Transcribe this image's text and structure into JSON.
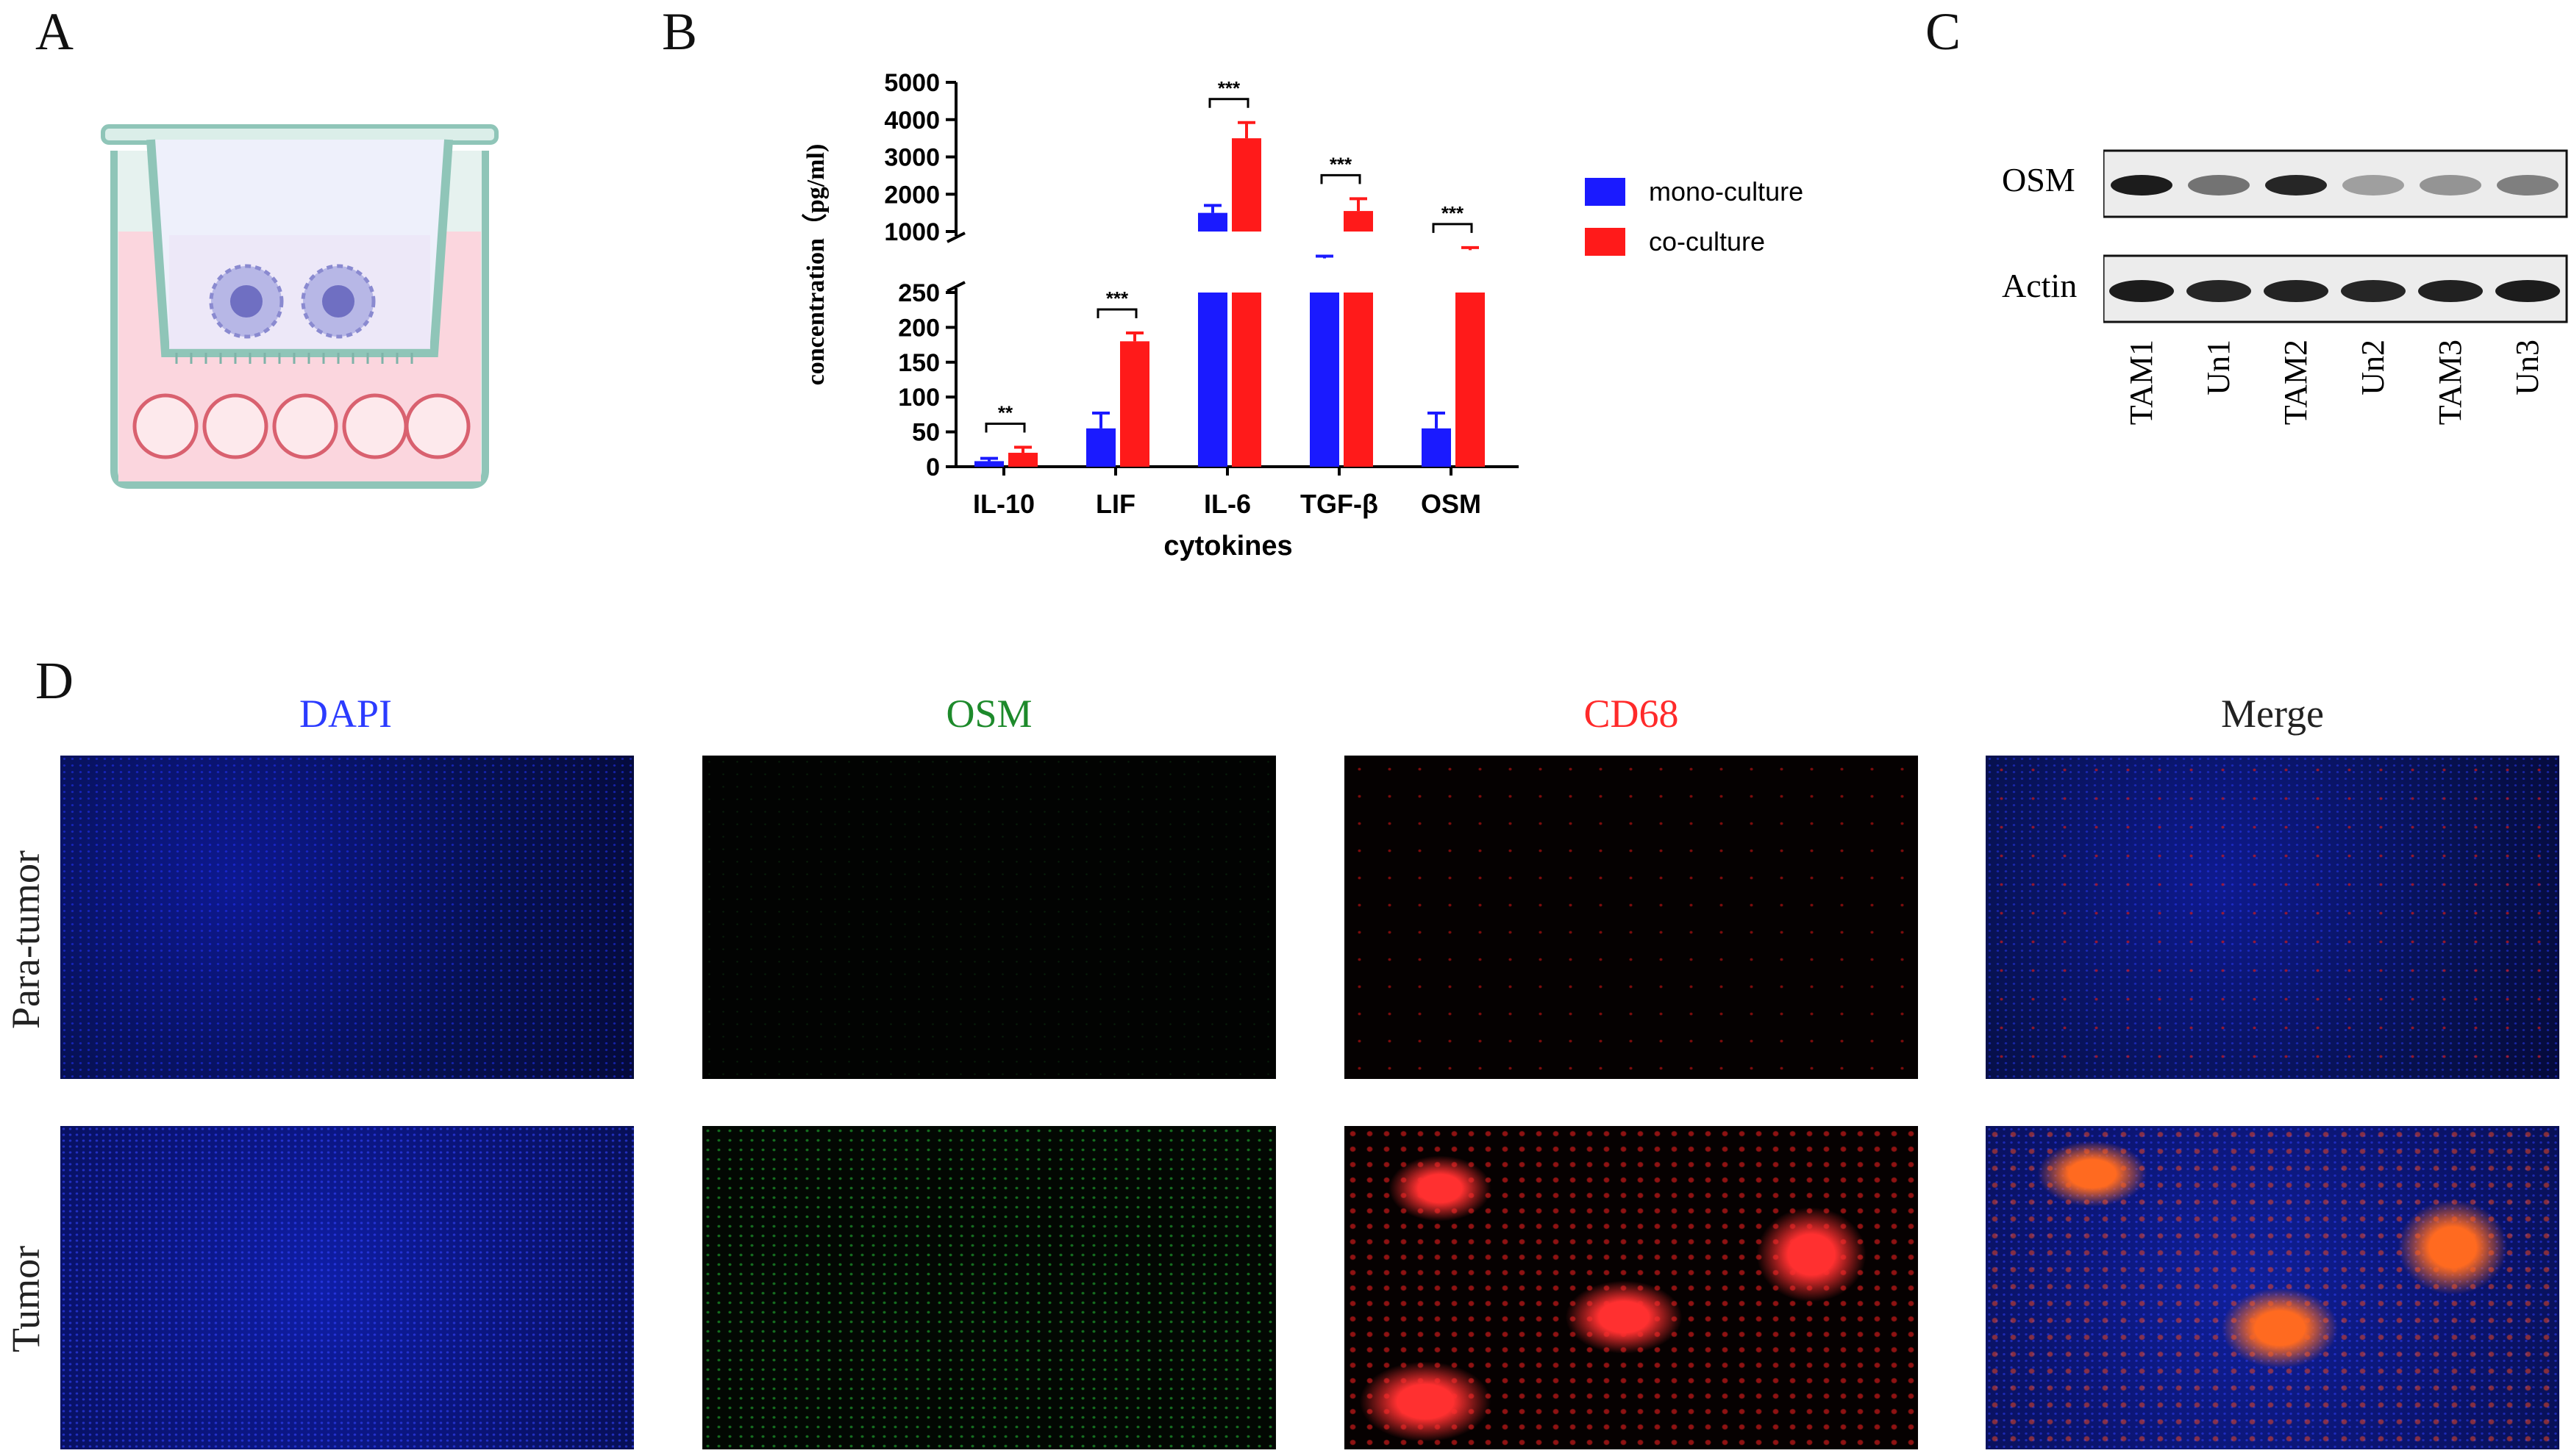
{
  "panels": {
    "a": "A",
    "b": "B",
    "c": "C",
    "d": "D"
  },
  "chart_data": {
    "type": "bar",
    "categories": [
      "IL-10",
      "LIF",
      "IL-6",
      "TGF-β",
      "OSM"
    ],
    "series": [
      {
        "name": "mono-culture",
        "color": "#1a1aff",
        "values": [
          8,
          55,
          1500,
          280,
          55
        ],
        "errors": [
          4,
          22,
          200,
          60,
          22
        ]
      },
      {
        "name": "co-culture",
        "color": "#ff1a1a",
        "values": [
          20,
          180,
          3500,
          1550,
          500
        ],
        "errors": [
          8,
          12,
          420,
          330,
          70
        ]
      }
    ],
    "xlabel": "cytokines",
    "ylabel": "concentration（pg/ml)",
    "upper_ticks": [
      "1000",
      "2000",
      "3000",
      "4000",
      "5000"
    ],
    "lower_ticks": [
      "0",
      "50",
      "100",
      "150",
      "200",
      "250"
    ],
    "axis_break": [
      250,
      1000
    ],
    "significance": [
      "**",
      "***",
      "***",
      "***",
      "***"
    ],
    "legend_position": "right"
  },
  "western": {
    "bands": [
      "OSM",
      "Actin"
    ],
    "lanes": [
      "TAM1",
      "Un1",
      "TAM2",
      "Un2",
      "TAM3",
      "Un3"
    ],
    "osm_intensity": [
      0.95,
      0.55,
      0.9,
      0.35,
      0.4,
      0.5
    ],
    "actin_intensity": [
      0.95,
      0.9,
      0.92,
      0.9,
      0.93,
      0.95
    ]
  },
  "micrographs": {
    "columns": [
      {
        "label": "DAPI",
        "color": "#2b3bff"
      },
      {
        "label": "OSM",
        "color": "#1d8a2b"
      },
      {
        "label": "CD68",
        "color": "#ff2a2a"
      },
      {
        "label": "Merge",
        "color": "#222222"
      }
    ],
    "rows": [
      "Para-tumor",
      "Tumor"
    ]
  }
}
